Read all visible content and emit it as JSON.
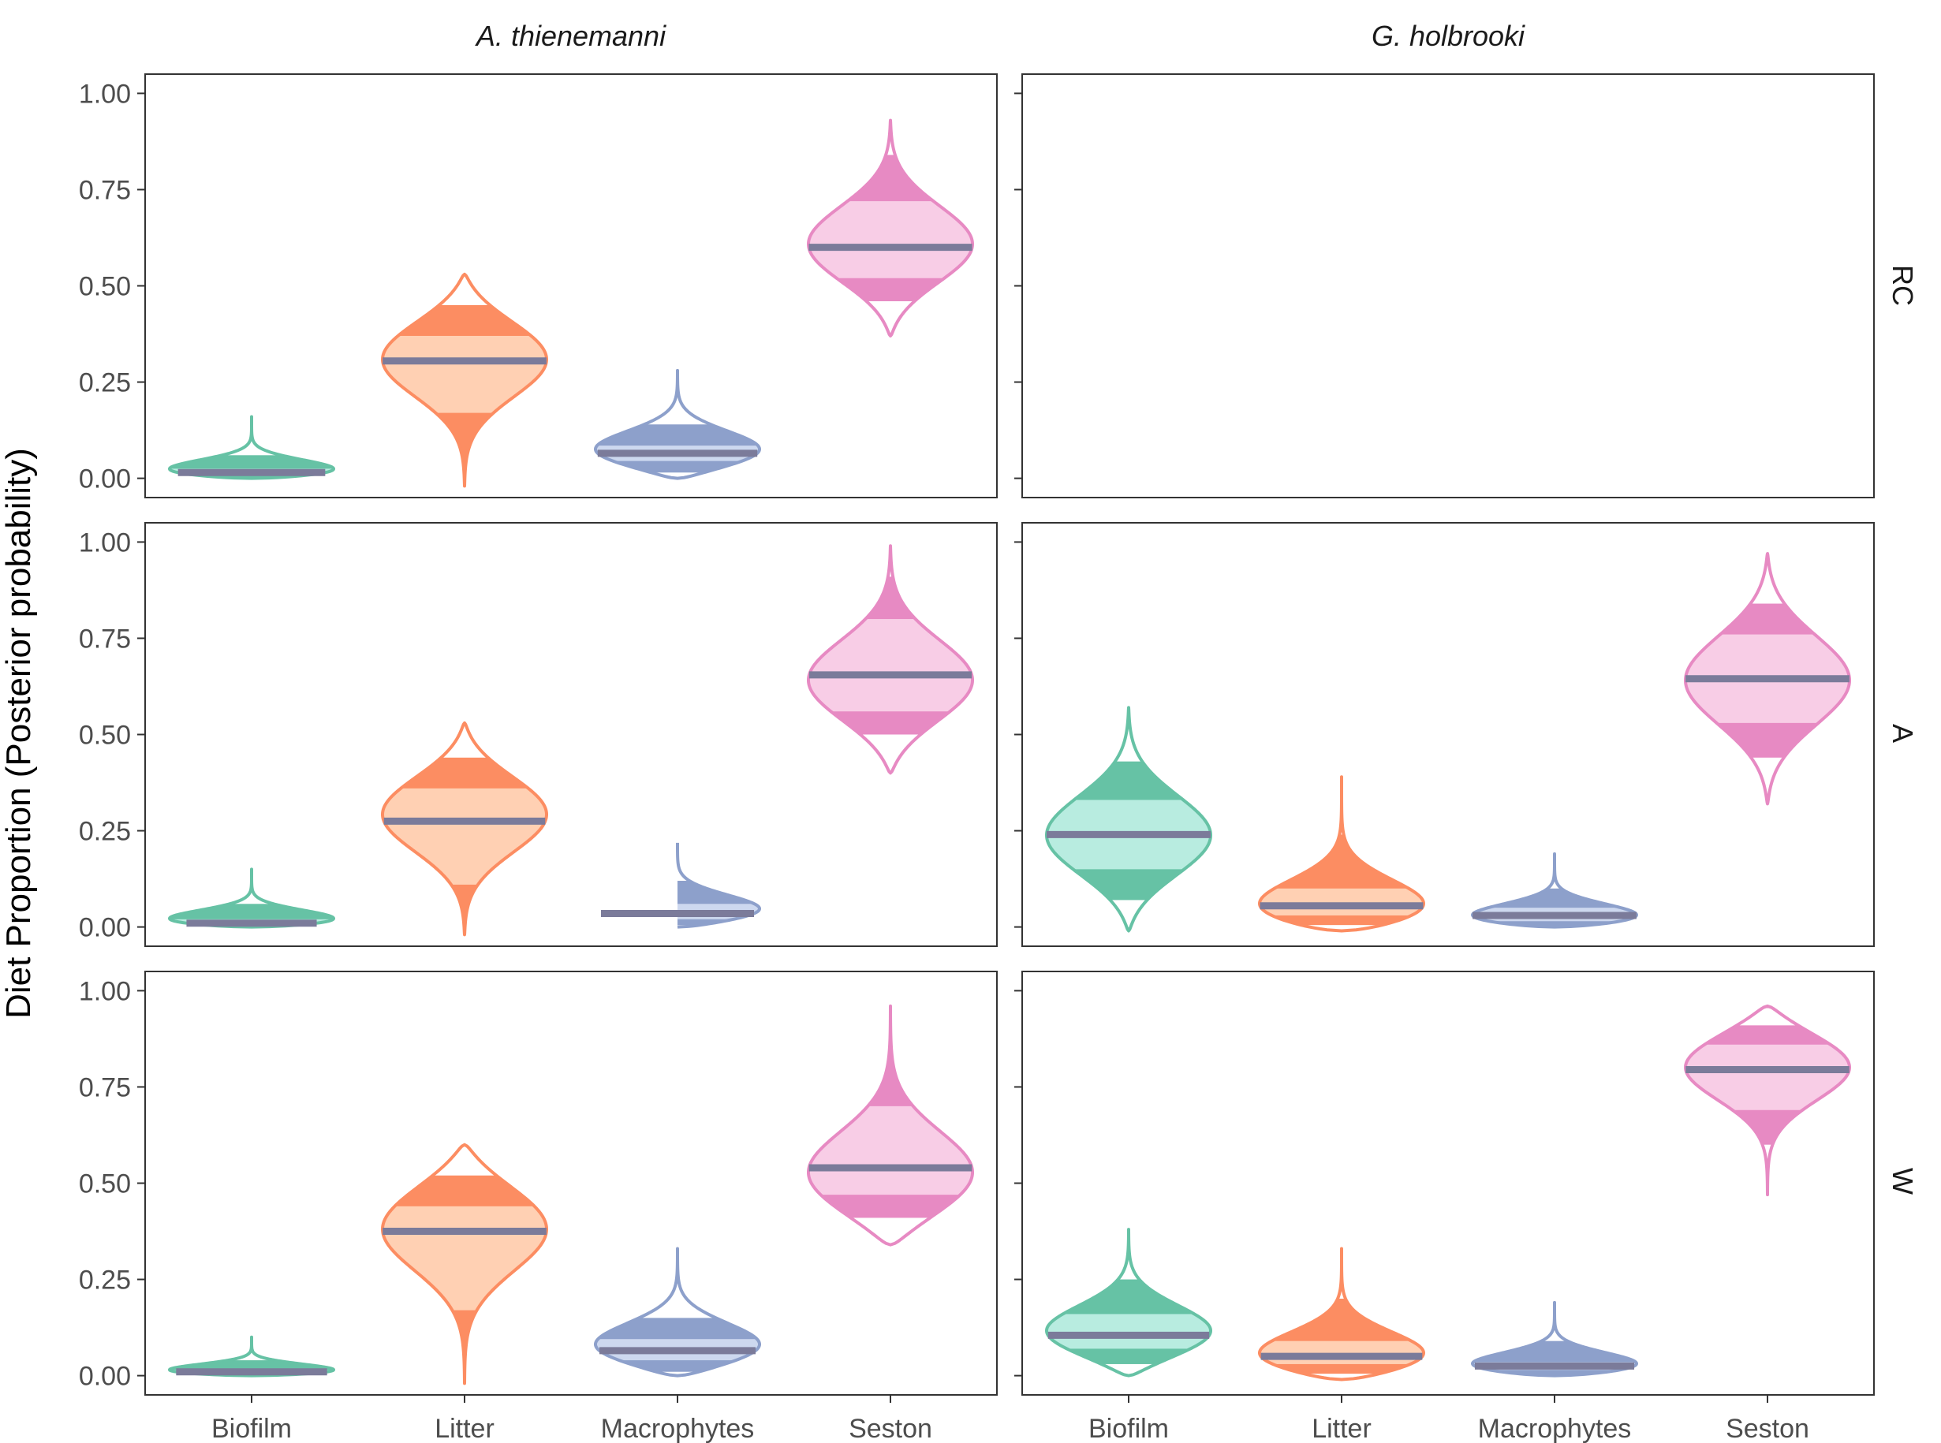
{
  "chart_data": {
    "type": "violin",
    "ylabel": "Diet Proportion (Posterior probability)",
    "xlabel": "",
    "ylim": [
      -0.05,
      1.05
    ],
    "y_ticks": [
      "0.00",
      "0.25",
      "0.50",
      "0.75",
      "1.00"
    ],
    "categories": [
      "Biofilm",
      "Litter",
      "Macrophytes",
      "Seston"
    ],
    "facet_columns": [
      "A. thienemanni",
      "G. holbrooki"
    ],
    "facet_rows": [
      "RC",
      "A",
      "W"
    ],
    "grid": false,
    "legend": "none",
    "colors": {
      "Biofilm": {
        "line": "#66c2a5",
        "inner": "#b8ece0",
        "outer": "#66c2a5"
      },
      "Litter": {
        "line": "#fc8d62",
        "inner": "#ffd0b3",
        "outer": "#fc8d62"
      },
      "Macrophytes": {
        "line": "#8da0cb",
        "inner": "#cdd8ef",
        "outer": "#8da0cb"
      },
      "Seston": {
        "line": "#e78ac3",
        "inner": "#f8cde6",
        "outer": "#e78ac3"
      },
      "median": "#7b7b9a"
    },
    "panels": [
      {
        "col": "A. thienemanni",
        "row": "RC",
        "violins": [
          {
            "source": "Biofilm",
            "min": 0.0,
            "max": 0.16,
            "median": 0.015,
            "q25": 0.01,
            "q75": 0.025,
            "q025": 0.002,
            "q975": 0.06,
            "mode": 0.005
          },
          {
            "source": "Litter",
            "min": -0.02,
            "max": 0.53,
            "median": 0.305,
            "q25": 0.17,
            "q75": 0.37,
            "q025": 0.04,
            "q975": 0.45,
            "mode": 0.32
          },
          {
            "source": "Macrophytes",
            "min": 0.0,
            "max": 0.28,
            "median": 0.065,
            "q25": 0.045,
            "q75": 0.085,
            "q025": 0.015,
            "q975": 0.14,
            "mode": 0.06
          },
          {
            "source": "Seston",
            "min": 0.37,
            "max": 0.93,
            "median": 0.6,
            "q25": 0.52,
            "q75": 0.72,
            "q025": 0.46,
            "q975": 0.84,
            "mode": 0.6
          }
        ]
      },
      {
        "col": "G. holbrooki",
        "row": "RC",
        "violins": []
      },
      {
        "col": "A. thienemanni",
        "row": "A",
        "violins": [
          {
            "source": "Biofilm",
            "min": 0.0,
            "max": 0.15,
            "median": 0.01,
            "q25": 0.005,
            "q75": 0.02,
            "q025": 0.001,
            "q975": 0.06,
            "mode": 0.003
          },
          {
            "source": "Litter",
            "min": -0.02,
            "max": 0.53,
            "median": 0.275,
            "q25": 0.11,
            "q75": 0.36,
            "q025": 0.01,
            "q975": 0.44,
            "mode": 0.3
          },
          {
            "source": "Macrophytes",
            "min": 0.0,
            "max": 0.22,
            "median": 0.035,
            "q25": 0.02,
            "q75": 0.06,
            "q025": 0.005,
            "q975": 0.12,
            "mode": 0.03
          },
          {
            "source": "Seston",
            "min": 0.4,
            "max": 0.99,
            "median": 0.655,
            "q25": 0.56,
            "q75": 0.8,
            "q025": 0.5,
            "q975": 0.91,
            "mode": 0.63
          }
        ]
      },
      {
        "col": "G. holbrooki",
        "row": "A",
        "violins": [
          {
            "source": "Biofilm",
            "min": -0.01,
            "max": 0.57,
            "median": 0.24,
            "q25": 0.15,
            "q75": 0.33,
            "q025": 0.07,
            "q975": 0.43,
            "mode": 0.23
          },
          {
            "source": "Litter",
            "min": -0.01,
            "max": 0.39,
            "median": 0.055,
            "q25": 0.03,
            "q75": 0.1,
            "q025": 0.005,
            "q975": 0.24,
            "mode": 0.02
          },
          {
            "source": "Macrophytes",
            "min": 0.0,
            "max": 0.19,
            "median": 0.03,
            "q25": 0.015,
            "q75": 0.05,
            "q025": 0.003,
            "q975": 0.1,
            "mode": 0.01
          },
          {
            "source": "Seston",
            "min": 0.32,
            "max": 0.97,
            "median": 0.645,
            "q25": 0.53,
            "q75": 0.76,
            "q025": 0.44,
            "q975": 0.84,
            "mode": 0.64
          }
        ]
      },
      {
        "col": "A. thienemanni",
        "row": "W",
        "violins": [
          {
            "source": "Biofilm",
            "min": 0.0,
            "max": 0.1,
            "median": 0.01,
            "q25": 0.005,
            "q75": 0.015,
            "q025": 0.001,
            "q975": 0.04,
            "mode": 0.003
          },
          {
            "source": "Litter",
            "min": -0.02,
            "max": 0.6,
            "median": 0.375,
            "q25": 0.17,
            "q75": 0.44,
            "q025": 0.03,
            "q975": 0.52,
            "mode": 0.4
          },
          {
            "source": "Macrophytes",
            "min": 0.0,
            "max": 0.33,
            "median": 0.065,
            "q25": 0.04,
            "q75": 0.095,
            "q025": 0.01,
            "q975": 0.15,
            "mode": 0.06
          },
          {
            "source": "Seston",
            "min": 0.34,
            "max": 0.96,
            "median": 0.54,
            "q25": 0.47,
            "q75": 0.7,
            "q025": 0.41,
            "q975": 0.87,
            "mode": 0.5
          }
        ]
      },
      {
        "col": "G. holbrooki",
        "row": "W",
        "violins": [
          {
            "source": "Biofilm",
            "min": 0.0,
            "max": 0.38,
            "median": 0.105,
            "q25": 0.07,
            "q75": 0.16,
            "q025": 0.03,
            "q975": 0.25,
            "mode": 0.1
          },
          {
            "source": "Litter",
            "min": -0.01,
            "max": 0.33,
            "median": 0.05,
            "q25": 0.03,
            "q75": 0.09,
            "q025": 0.005,
            "q975": 0.2,
            "mode": 0.03
          },
          {
            "source": "Macrophytes",
            "min": 0.0,
            "max": 0.19,
            "median": 0.025,
            "q25": 0.015,
            "q75": 0.035,
            "q025": 0.003,
            "q975": 0.09,
            "mode": 0.01
          },
          {
            "source": "Seston",
            "min": 0.47,
            "max": 0.96,
            "median": 0.795,
            "q25": 0.69,
            "q75": 0.86,
            "q025": 0.6,
            "q975": 0.91,
            "mode": 0.82
          }
        ]
      }
    ]
  }
}
